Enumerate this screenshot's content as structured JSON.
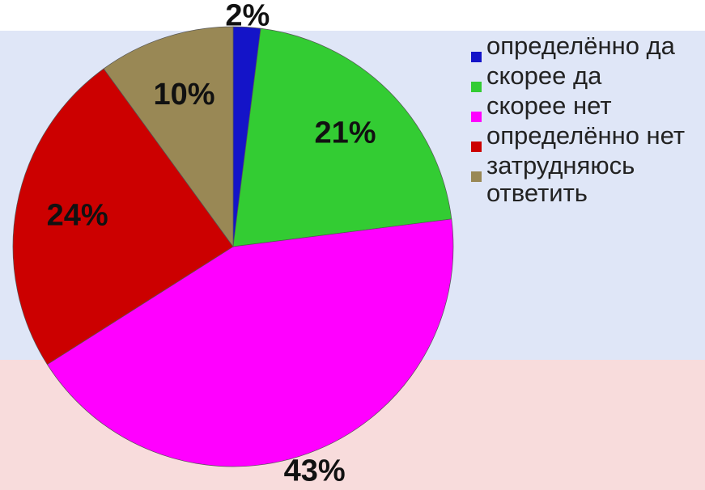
{
  "chart_data": {
    "type": "pie",
    "categories": [
      "определённо да",
      "скорее да",
      "скорее нет",
      "определённо нет",
      "затрудняюсь ответить"
    ],
    "values": [
      2,
      21,
      43,
      24,
      10
    ],
    "value_labels": [
      "2%",
      "21%",
      "43%",
      "24%",
      "10%"
    ],
    "colors": [
      "#1414c8",
      "#33cc33",
      "#ff00ff",
      "#cc0000",
      "#998855"
    ],
    "legend": "right"
  }
}
